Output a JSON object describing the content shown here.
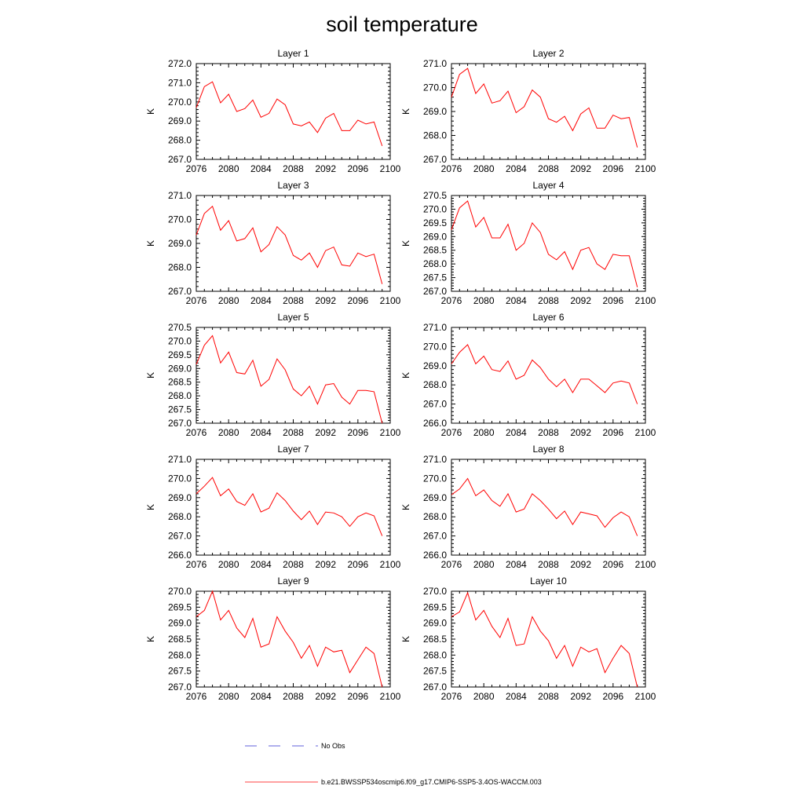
{
  "title": "soil temperature",
  "legend": {
    "entries": [
      {
        "label": "No Obs",
        "color": "#2f2fd0",
        "style": "dashed"
      },
      {
        "label": "b.e21.BWSSP534oscmip6.f09_g17.CMIP6-SSP5-3.4OS-WACCM.003",
        "color": "#ff0000",
        "style": "solid"
      }
    ]
  },
  "chart_data": [
    {
      "type": "line",
      "title": "Layer 1",
      "ylabel": "K",
      "xlim": [
        2076,
        2100
      ],
      "ylim": [
        267.0,
        272.0
      ],
      "xticks": [
        "2076",
        "2080",
        "2084",
        "2088",
        "2092",
        "2096",
        "2100"
      ],
      "yticks": [
        "267.0",
        "268.0",
        "269.0",
        "270.0",
        "271.0",
        "272.0"
      ],
      "series": [
        {
          "color": "#ff0000",
          "x": [
            2076,
            2077,
            2078,
            2079,
            2080,
            2081,
            2082,
            2083,
            2084,
            2085,
            2086,
            2087,
            2088,
            2089,
            2090,
            2091,
            2092,
            2093,
            2094,
            2095,
            2096,
            2097,
            2098,
            2099
          ],
          "values": [
            269.7,
            270.8,
            271.05,
            269.95,
            270.4,
            269.5,
            269.65,
            270.1,
            269.2,
            269.4,
            270.15,
            269.85,
            268.85,
            268.75,
            268.95,
            268.4,
            269.15,
            269.4,
            268.5,
            268.5,
            269.05,
            268.85,
            268.95,
            267.7
          ]
        }
      ]
    },
    {
      "type": "line",
      "title": "Layer 2",
      "ylabel": "K",
      "xlim": [
        2076,
        2100
      ],
      "ylim": [
        267.0,
        271.0
      ],
      "xticks": [
        "2076",
        "2080",
        "2084",
        "2088",
        "2092",
        "2096",
        "2100"
      ],
      "yticks": [
        "267.0",
        "268.0",
        "269.0",
        "270.0",
        "271.0"
      ],
      "series": [
        {
          "color": "#ff0000",
          "x": [
            2076,
            2077,
            2078,
            2079,
            2080,
            2081,
            2082,
            2083,
            2084,
            2085,
            2086,
            2087,
            2088,
            2089,
            2090,
            2091,
            2092,
            2093,
            2094,
            2095,
            2096,
            2097,
            2098,
            2099
          ],
          "values": [
            269.6,
            270.55,
            270.8,
            269.75,
            270.15,
            269.35,
            269.45,
            269.85,
            268.95,
            269.2,
            269.9,
            269.6,
            268.7,
            268.55,
            268.8,
            268.2,
            268.9,
            269.15,
            268.3,
            268.3,
            268.85,
            268.7,
            268.75,
            267.5
          ]
        }
      ]
    },
    {
      "type": "line",
      "title": "Layer 3",
      "ylabel": "K",
      "xlim": [
        2076,
        2100
      ],
      "ylim": [
        267.0,
        271.0
      ],
      "xticks": [
        "2076",
        "2080",
        "2084",
        "2088",
        "2092",
        "2096",
        "2100"
      ],
      "yticks": [
        "267.0",
        "268.0",
        "269.0",
        "270.0",
        "271.0"
      ],
      "series": [
        {
          "color": "#ff0000",
          "x": [
            2076,
            2077,
            2078,
            2079,
            2080,
            2081,
            2082,
            2083,
            2084,
            2085,
            2086,
            2087,
            2088,
            2089,
            2090,
            2091,
            2092,
            2093,
            2094,
            2095,
            2096,
            2097,
            2098,
            2099
          ],
          "values": [
            269.35,
            270.25,
            270.55,
            269.55,
            269.95,
            269.1,
            269.2,
            269.65,
            268.65,
            268.95,
            269.7,
            269.35,
            268.5,
            268.3,
            268.6,
            268.0,
            268.7,
            268.85,
            268.1,
            268.05,
            268.6,
            268.45,
            268.55,
            267.3
          ]
        }
      ]
    },
    {
      "type": "line",
      "title": "Layer 4",
      "ylabel": "K",
      "xlim": [
        2076,
        2100
      ],
      "ylim": [
        267.0,
        270.5
      ],
      "xticks": [
        "2076",
        "2080",
        "2084",
        "2088",
        "2092",
        "2096",
        "2100"
      ],
      "yticks": [
        "267.0",
        "267.5",
        "268.0",
        "268.5",
        "269.0",
        "269.5",
        "270.0",
        "270.5"
      ],
      "series": [
        {
          "color": "#ff0000",
          "x": [
            2076,
            2077,
            2078,
            2079,
            2080,
            2081,
            2082,
            2083,
            2084,
            2085,
            2086,
            2087,
            2088,
            2089,
            2090,
            2091,
            2092,
            2093,
            2094,
            2095,
            2096,
            2097,
            2098,
            2099
          ],
          "values": [
            269.25,
            270.05,
            270.3,
            269.35,
            269.7,
            268.95,
            268.95,
            269.45,
            268.5,
            268.75,
            269.5,
            269.15,
            268.35,
            268.15,
            268.45,
            267.8,
            268.5,
            268.6,
            268.0,
            267.8,
            268.35,
            268.3,
            268.3,
            267.15
          ]
        }
      ]
    },
    {
      "type": "line",
      "title": "Layer 5",
      "ylabel": "K",
      "xlim": [
        2076,
        2100
      ],
      "ylim": [
        267.0,
        270.5
      ],
      "xticks": [
        "2076",
        "2080",
        "2084",
        "2088",
        "2092",
        "2096",
        "2100"
      ],
      "yticks": [
        "267.0",
        "267.5",
        "268.0",
        "268.5",
        "269.0",
        "269.5",
        "270.0",
        "270.5"
      ],
      "series": [
        {
          "color": "#ff0000",
          "x": [
            2076,
            2077,
            2078,
            2079,
            2080,
            2081,
            2082,
            2083,
            2084,
            2085,
            2086,
            2087,
            2088,
            2089,
            2090,
            2091,
            2092,
            2093,
            2094,
            2095,
            2096,
            2097,
            2098,
            2099
          ],
          "values": [
            269.15,
            269.85,
            270.2,
            269.2,
            269.6,
            268.85,
            268.8,
            269.3,
            268.35,
            268.6,
            269.35,
            268.95,
            268.25,
            268.0,
            268.35,
            267.7,
            268.4,
            268.45,
            267.95,
            267.7,
            268.2,
            268.2,
            268.15,
            267.0
          ]
        }
      ]
    },
    {
      "type": "line",
      "title": "Layer 6",
      "ylabel": "K",
      "xlim": [
        2076,
        2100
      ],
      "ylim": [
        266.0,
        271.0
      ],
      "xticks": [
        "2076",
        "2080",
        "2084",
        "2088",
        "2092",
        "2096",
        "2100"
      ],
      "yticks": [
        "266.0",
        "267.0",
        "268.0",
        "269.0",
        "270.0",
        "271.0"
      ],
      "series": [
        {
          "color": "#ff0000",
          "x": [
            2076,
            2077,
            2078,
            2079,
            2080,
            2081,
            2082,
            2083,
            2084,
            2085,
            2086,
            2087,
            2088,
            2089,
            2090,
            2091,
            2092,
            2093,
            2094,
            2095,
            2096,
            2097,
            2098,
            2099
          ],
          "values": [
            269.1,
            269.7,
            270.1,
            269.1,
            269.5,
            268.8,
            268.7,
            269.25,
            268.3,
            268.5,
            269.3,
            268.9,
            268.3,
            267.9,
            268.3,
            267.6,
            268.3,
            268.3,
            267.95,
            267.6,
            268.1,
            268.2,
            268.1,
            267.0
          ]
        }
      ]
    },
    {
      "type": "line",
      "title": "Layer 7",
      "ylabel": "K",
      "xlim": [
        2076,
        2100
      ],
      "ylim": [
        266.0,
        271.0
      ],
      "xticks": [
        "2076",
        "2080",
        "2084",
        "2088",
        "2092",
        "2096",
        "2100"
      ],
      "yticks": [
        "266.0",
        "267.0",
        "268.0",
        "269.0",
        "270.0",
        "271.0"
      ],
      "series": [
        {
          "color": "#ff0000",
          "x": [
            2076,
            2077,
            2078,
            2079,
            2080,
            2081,
            2082,
            2083,
            2084,
            2085,
            2086,
            2087,
            2088,
            2089,
            2090,
            2091,
            2092,
            2093,
            2094,
            2095,
            2096,
            2097,
            2098,
            2099
          ],
          "values": [
            269.2,
            269.6,
            270.05,
            269.1,
            269.45,
            268.8,
            268.6,
            269.2,
            268.25,
            268.45,
            269.25,
            268.85,
            268.3,
            267.85,
            268.3,
            267.6,
            268.25,
            268.2,
            268.0,
            267.5,
            268.0,
            268.2,
            268.05,
            267.0
          ]
        }
      ]
    },
    {
      "type": "line",
      "title": "Layer 8",
      "ylabel": "K",
      "xlim": [
        2076,
        2100
      ],
      "ylim": [
        266.0,
        271.0
      ],
      "xticks": [
        "2076",
        "2080",
        "2084",
        "2088",
        "2092",
        "2096",
        "2100"
      ],
      "yticks": [
        "266.0",
        "267.0",
        "268.0",
        "269.0",
        "270.0",
        "271.0"
      ],
      "series": [
        {
          "color": "#ff0000",
          "x": [
            2076,
            2077,
            2078,
            2079,
            2080,
            2081,
            2082,
            2083,
            2084,
            2085,
            2086,
            2087,
            2088,
            2089,
            2090,
            2091,
            2092,
            2093,
            2094,
            2095,
            2096,
            2097,
            2098,
            2099
          ],
          "values": [
            269.15,
            269.45,
            270.0,
            269.1,
            269.4,
            268.85,
            268.55,
            269.2,
            268.25,
            268.4,
            269.2,
            268.85,
            268.4,
            267.9,
            268.3,
            267.6,
            268.25,
            268.15,
            268.05,
            267.45,
            267.95,
            268.25,
            268.0,
            267.0
          ]
        }
      ]
    },
    {
      "type": "line",
      "title": "Layer 9",
      "ylabel": "K",
      "xlim": [
        2076,
        2100
      ],
      "ylim": [
        267.0,
        270.0
      ],
      "xticks": [
        "2076",
        "2080",
        "2084",
        "2088",
        "2092",
        "2096",
        "2100"
      ],
      "yticks": [
        "267.0",
        "267.5",
        "268.0",
        "268.5",
        "269.0",
        "269.5",
        "270.0"
      ],
      "series": [
        {
          "color": "#ff0000",
          "x": [
            2076,
            2077,
            2078,
            2079,
            2080,
            2081,
            2082,
            2083,
            2084,
            2085,
            2086,
            2087,
            2088,
            2089,
            2090,
            2091,
            2092,
            2093,
            2094,
            2095,
            2096,
            2097,
            2098,
            2099
          ],
          "values": [
            269.2,
            269.4,
            270.0,
            269.1,
            269.4,
            268.85,
            268.55,
            269.15,
            268.25,
            268.35,
            269.2,
            268.75,
            268.4,
            267.9,
            268.3,
            267.65,
            268.25,
            268.1,
            268.15,
            267.45,
            267.85,
            268.25,
            268.05,
            267.0
          ]
        }
      ]
    },
    {
      "type": "line",
      "title": "Layer 10",
      "ylabel": "K",
      "xlim": [
        2076,
        2100
      ],
      "ylim": [
        267.0,
        270.0
      ],
      "xticks": [
        "2076",
        "2080",
        "2084",
        "2088",
        "2092",
        "2096",
        "2100"
      ],
      "yticks": [
        "267.0",
        "267.5",
        "268.0",
        "268.5",
        "269.0",
        "269.5",
        "270.0"
      ],
      "series": [
        {
          "color": "#ff0000",
          "x": [
            2076,
            2077,
            2078,
            2079,
            2080,
            2081,
            2082,
            2083,
            2084,
            2085,
            2086,
            2087,
            2088,
            2089,
            2090,
            2091,
            2092,
            2093,
            2094,
            2095,
            2096,
            2097,
            2098,
            2099
          ],
          "values": [
            269.2,
            269.35,
            269.95,
            269.1,
            269.4,
            268.9,
            268.55,
            269.15,
            268.3,
            268.35,
            269.2,
            268.75,
            268.45,
            267.9,
            268.3,
            267.65,
            268.25,
            268.1,
            268.2,
            267.45,
            267.9,
            268.3,
            268.05,
            267.0
          ]
        }
      ]
    }
  ]
}
